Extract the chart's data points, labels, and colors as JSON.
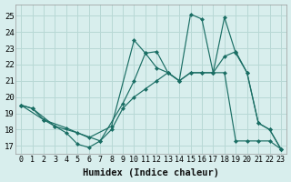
{
  "xlabel": "Humidex (Indice chaleur)",
  "background_color": "#d8eeed",
  "grid_color": "#b8d8d5",
  "line_color": "#1a6e64",
  "xlim": [
    -0.5,
    23.5
  ],
  "ylim": [
    16.5,
    25.7
  ],
  "yticks": [
    17,
    18,
    19,
    20,
    21,
    22,
    23,
    24,
    25
  ],
  "xticks": [
    0,
    1,
    2,
    3,
    4,
    5,
    6,
    7,
    8,
    9,
    10,
    11,
    12,
    13,
    14,
    15,
    16,
    17,
    18,
    19,
    20,
    21,
    22,
    23
  ],
  "series": [
    {
      "x": [
        0,
        2,
        4,
        6,
        8,
        10,
        11,
        12,
        13,
        14,
        15,
        16,
        17,
        18,
        19,
        20,
        21,
        22,
        23
      ],
      "y": [
        19.5,
        18.6,
        18.1,
        17.5,
        18.2,
        23.5,
        22.7,
        22.8,
        21.5,
        21.0,
        25.1,
        24.8,
        21.5,
        24.9,
        22.7,
        21.5,
        18.4,
        18.0,
        16.8
      ]
    },
    {
      "x": [
        0,
        1,
        2,
        3,
        5,
        7,
        9,
        10,
        11,
        12,
        13,
        14,
        15,
        16,
        17,
        18,
        19,
        20,
        21,
        22,
        23
      ],
      "y": [
        19.5,
        19.3,
        18.6,
        18.2,
        17.8,
        17.3,
        19.6,
        21.0,
        22.7,
        21.8,
        21.5,
        21.0,
        21.5,
        21.5,
        21.5,
        22.5,
        22.8,
        21.5,
        18.4,
        18.0,
        16.8
      ]
    },
    {
      "x": [
        0,
        1,
        3,
        4,
        5,
        6,
        7,
        8,
        9,
        10,
        11,
        12,
        13,
        14,
        15,
        16,
        17,
        18,
        19,
        20,
        21,
        22,
        23
      ],
      "y": [
        19.5,
        19.3,
        18.2,
        17.8,
        17.1,
        16.9,
        17.3,
        18.0,
        19.3,
        20.0,
        20.5,
        21.0,
        21.5,
        21.0,
        21.5,
        21.5,
        21.5,
        21.5,
        17.3,
        17.3,
        17.3,
        17.3,
        16.8
      ]
    }
  ]
}
